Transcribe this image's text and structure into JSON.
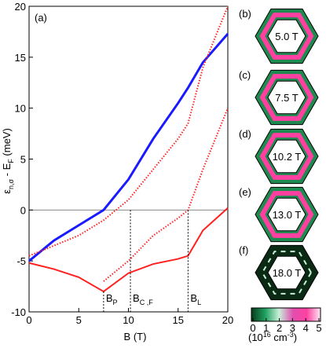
{
  "chart_data": {
    "type": "line",
    "panel_label": "(a)",
    "ylabel": {
      "sym": "ε",
      "sub": "n,σ",
      "mid": " - E",
      "sub2": "F",
      "unit": " (meV)"
    },
    "xlabel": "B (T)",
    "x": [
      0,
      2.5,
      5,
      7.5,
      10,
      12.5,
      15,
      16,
      17.5,
      20
    ],
    "series": [
      {
        "color": "#1a1aff",
        "values": [
          -5,
          -3,
          -1.5,
          0,
          3,
          7,
          10.5,
          12,
          14.5,
          17.3
        ]
      },
      {
        "color": "#ff2020",
        "values": [
          -5.2,
          -5.8,
          -6.6,
          -8,
          -6.2,
          -5.3,
          -4.8,
          -4.5,
          -2,
          0.2
        ]
      },
      {
        "color": "#ff2020",
        "values": [
          null,
          null,
          null,
          -7,
          -5,
          -2.5,
          -0.8,
          0,
          4,
          10
        ]
      },
      {
        "color": "#ff2020",
        "values": [
          -4.5,
          -3.5,
          -2.5,
          -1,
          1,
          4,
          7,
          8.5,
          14,
          20
        ]
      }
    ],
    "markers": [
      {
        "x": 7.5,
        "top": -8,
        "main": "B",
        "sub": "P"
      },
      {
        "x": 10.2,
        "top": 0,
        "main": "B",
        "sub": "C ,F"
      },
      {
        "x": 16,
        "top": 0,
        "main": "B",
        "sub": "L"
      }
    ],
    "xlim": [
      0,
      20
    ],
    "ylim": [
      -10,
      20
    ],
    "xticks": [
      0,
      5,
      10,
      15,
      20
    ],
    "yticks": [
      -10,
      -5,
      0,
      5,
      10,
      15,
      20
    ]
  },
  "panels": [
    {
      "tag": "(b)",
      "field": "5.0 T"
    },
    {
      "tag": "(c)",
      "field": "7.5 T"
    },
    {
      "tag": "(d)",
      "field": "10.2 T"
    },
    {
      "tag": "(e)",
      "field": "13.0 T"
    },
    {
      "tag": "(f)",
      "field": "18.0 T"
    }
  ],
  "colorbar": {
    "ticks": [
      0,
      1,
      2,
      3,
      4,
      5
    ],
    "label": {
      "pre": "(10",
      "sup": "16",
      "mid": " cm",
      "sup2": "-3",
      "post": ")"
    }
  }
}
